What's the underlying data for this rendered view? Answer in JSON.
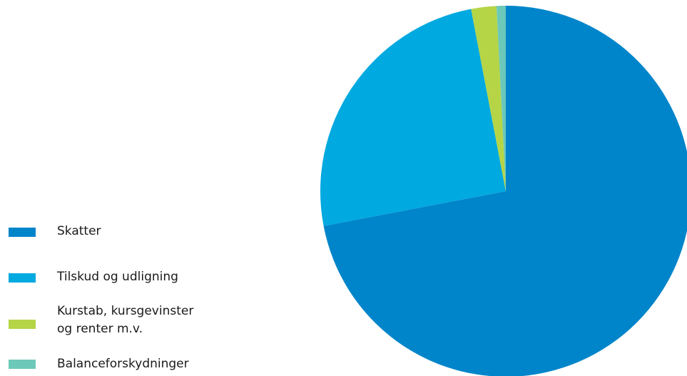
{
  "chart_data": {
    "type": "pie",
    "title": "",
    "legend_position": "left",
    "start_angle": "12 o'clock",
    "direction": "clockwise",
    "slices": [
      {
        "name": "Skatter",
        "value": 72.0,
        "color": "#0085CA"
      },
      {
        "name": "Tilskud og udligning",
        "value": 25.0,
        "color": "#00A9E0"
      },
      {
        "name": "Kurstab, kursgevinster og renter m.v.",
        "value": 2.2,
        "color": "#B5D547"
      },
      {
        "name": "Balanceforskydninger",
        "value": 0.8,
        "color": "#6CC9B9"
      }
    ]
  },
  "legend": {
    "items": [
      {
        "label_lines": [
          "Skatter"
        ],
        "color": "#0085CA"
      },
      {
        "label_lines": [
          "Tilskud og udligning"
        ],
        "color": "#00A9E0"
      },
      {
        "label_lines": [
          "Kurstab, kursgevinster",
          "og renter m.v."
        ],
        "color": "#B5D547"
      },
      {
        "label_lines": [
          "Balanceforskydninger"
        ],
        "color": "#6CC9B9"
      }
    ]
  }
}
